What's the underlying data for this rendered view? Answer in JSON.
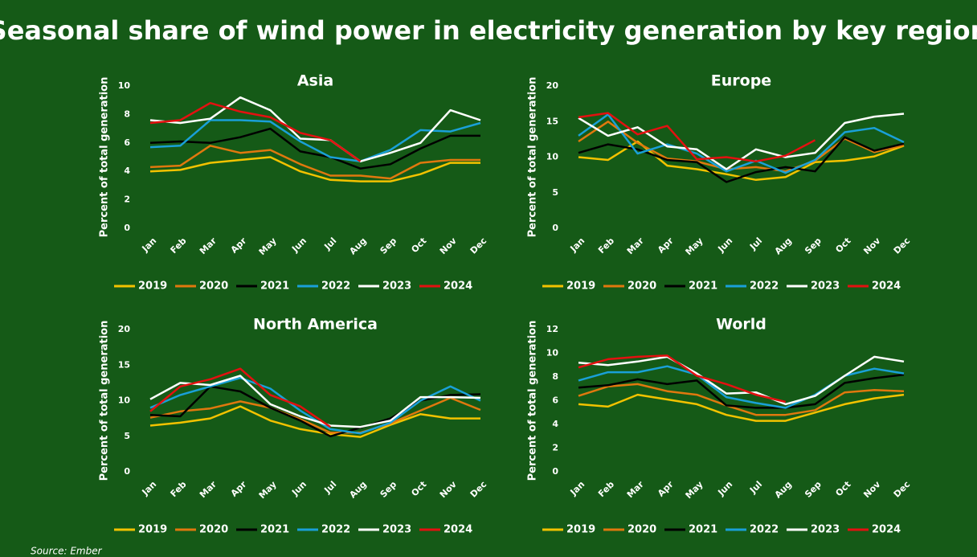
{
  "title": "Seasonal share of wind power in electricity generation by key region",
  "source": "Source: Ember",
  "chart_data": [
    {
      "type": "line",
      "title": "Asia",
      "y_label": "Percent of total generation",
      "categories": [
        "Jan",
        "Feb",
        "Mar",
        "Apr",
        "May",
        "Jun",
        "Jul",
        "Aug",
        "Sep",
        "Oct",
        "Nov",
        "Dec"
      ],
      "ylim": [
        0,
        10
      ],
      "yticks": [
        0,
        2,
        4,
        6,
        8,
        10
      ],
      "grid": false,
      "series": [
        {
          "name": "2019",
          "color": "#f2c200",
          "values": [
            4.0,
            4.1,
            4.6,
            4.8,
            5.0,
            4.0,
            3.4,
            3.3,
            3.3,
            3.8,
            4.6,
            4.6
          ]
        },
        {
          "name": "2020",
          "color": "#e0780e",
          "values": [
            4.3,
            4.4,
            5.8,
            5.3,
            5.5,
            4.5,
            3.7,
            3.7,
            3.5,
            4.6,
            4.8,
            4.8
          ]
        },
        {
          "name": "2021",
          "color": "#000000",
          "values": [
            6.0,
            6.1,
            6.0,
            6.4,
            7.0,
            5.4,
            5.0,
            4.2,
            4.5,
            5.6,
            6.5,
            6.5
          ]
        },
        {
          "name": "2022",
          "color": "#1aa0d8",
          "values": [
            5.7,
            5.8,
            7.6,
            7.6,
            7.5,
            6.1,
            5.0,
            4.7,
            5.5,
            6.9,
            6.8,
            7.4
          ]
        },
        {
          "name": "2023",
          "color": "#ffffff",
          "values": [
            7.6,
            7.4,
            7.7,
            9.2,
            8.3,
            6.3,
            6.2,
            4.7,
            5.3,
            6.0,
            8.3,
            7.6
          ]
        },
        {
          "name": "2024",
          "color": "#e41010",
          "values": [
            7.4,
            7.6,
            8.8,
            8.2,
            7.8,
            6.7,
            6.2,
            4.7,
            null,
            null,
            null,
            null
          ]
        }
      ]
    },
    {
      "type": "line",
      "title": "Europe",
      "y_label": "Percent of total generation",
      "categories": [
        "Jan",
        "Feb",
        "Mar",
        "Apr",
        "May",
        "Jun",
        "Jul",
        "Aug",
        "Sep",
        "Oct",
        "Nov",
        "Dec"
      ],
      "ylim": [
        0,
        20
      ],
      "yticks": [
        0,
        5,
        10,
        15,
        20
      ],
      "grid": false,
      "series": [
        {
          "name": "2019",
          "color": "#f2c200",
          "values": [
            10.0,
            9.6,
            12.2,
            8.8,
            8.3,
            7.6,
            6.8,
            7.2,
            9.3,
            9.5,
            10.1,
            11.6
          ]
        },
        {
          "name": "2020",
          "color": "#e0780e",
          "values": [
            12.2,
            15.0,
            12.0,
            9.8,
            9.4,
            8.3,
            8.6,
            8.0,
            9.5,
            12.6,
            10.7,
            11.7
          ]
        },
        {
          "name": "2021",
          "color": "#000000",
          "values": [
            10.6,
            11.8,
            11.1,
            9.6,
            9.3,
            6.5,
            7.9,
            8.6,
            8.0,
            12.8,
            10.9,
            11.9
          ]
        },
        {
          "name": "2022",
          "color": "#1aa0d8",
          "values": [
            13.0,
            16.0,
            10.5,
            11.8,
            10.5,
            8.0,
            9.5,
            7.8,
            9.6,
            13.5,
            14.1,
            12.1
          ]
        },
        {
          "name": "2023",
          "color": "#ffffff",
          "values": [
            15.5,
            13.0,
            14.2,
            11.5,
            11.1,
            8.3,
            11.1,
            10.0,
            10.6,
            14.8,
            15.7,
            16.1
          ]
        },
        {
          "name": "2024",
          "color": "#e41010",
          "values": [
            15.6,
            16.2,
            13.2,
            14.4,
            9.7,
            10.0,
            9.4,
            10.2,
            12.4,
            null,
            null,
            null
          ]
        }
      ]
    },
    {
      "type": "line",
      "title": "North America",
      "y_label": "Percent of total generation",
      "categories": [
        "Jan",
        "Feb",
        "Mar",
        "Apr",
        "May",
        "Jun",
        "Jul",
        "Aug",
        "Sep",
        "Oct",
        "Nov",
        "Dec"
      ],
      "ylim": [
        0,
        20
      ],
      "yticks": [
        0,
        5,
        10,
        15,
        20
      ],
      "grid": false,
      "series": [
        {
          "name": "2019",
          "color": "#f2c200",
          "values": [
            6.5,
            6.9,
            7.5,
            9.2,
            7.2,
            6.0,
            5.3,
            4.9,
            6.6,
            8.1,
            7.5,
            7.5
          ]
        },
        {
          "name": "2020",
          "color": "#e0780e",
          "values": [
            7.6,
            8.5,
            8.9,
            9.9,
            9.0,
            7.4,
            5.5,
            5.5,
            6.8,
            8.6,
            10.4,
            8.7
          ]
        },
        {
          "name": "2021",
          "color": "#000000",
          "values": [
            8.0,
            7.8,
            12.0,
            11.3,
            9.0,
            7.2,
            5.0,
            6.2,
            7.5,
            10.0,
            10.8,
            10.9
          ]
        },
        {
          "name": "2022",
          "color": "#1aa0d8",
          "values": [
            9.0,
            10.8,
            12.0,
            13.2,
            11.7,
            8.6,
            6.0,
            5.4,
            6.9,
            10.0,
            12.0,
            10.0
          ]
        },
        {
          "name": "2023",
          "color": "#ffffff",
          "values": [
            10.2,
            12.5,
            12.2,
            13.5,
            9.5,
            7.8,
            6.5,
            6.3,
            7.2,
            10.5,
            10.5,
            10.4
          ]
        },
        {
          "name": "2024",
          "color": "#e41010",
          "values": [
            8.5,
            12.0,
            13.0,
            14.5,
            10.8,
            9.2,
            6.3,
            null,
            null,
            null,
            null,
            null
          ]
        }
      ]
    },
    {
      "type": "line",
      "title": "World",
      "y_label": "Percent of total generation",
      "categories": [
        "Jan",
        "Feb",
        "Mar",
        "Apr",
        "May",
        "Jun",
        "Jul",
        "Aug",
        "Sep",
        "Oct",
        "Nov",
        "Dec"
      ],
      "ylim": [
        0,
        12
      ],
      "yticks": [
        0,
        2,
        4,
        6,
        8,
        10,
        12
      ],
      "grid": false,
      "series": [
        {
          "name": "2019",
          "color": "#f2c200",
          "values": [
            5.7,
            5.5,
            6.5,
            6.1,
            5.7,
            4.8,
            4.3,
            4.3,
            5.0,
            5.7,
            6.2,
            6.5
          ]
        },
        {
          "name": "2020",
          "color": "#e0780e",
          "values": [
            6.4,
            7.2,
            7.4,
            6.8,
            6.5,
            5.6,
            4.8,
            4.8,
            5.2,
            6.7,
            6.9,
            6.8
          ]
        },
        {
          "name": "2021",
          "color": "#000000",
          "values": [
            7.1,
            7.3,
            7.8,
            7.4,
            7.7,
            5.6,
            5.4,
            5.4,
            5.7,
            7.5,
            7.9,
            8.2
          ]
        },
        {
          "name": "2022",
          "color": "#1aa0d8",
          "values": [
            7.7,
            8.4,
            8.4,
            8.9,
            8.2,
            6.3,
            5.8,
            5.4,
            6.5,
            8.1,
            8.7,
            8.3
          ]
        },
        {
          "name": "2023",
          "color": "#ffffff",
          "values": [
            9.2,
            9.0,
            9.3,
            9.7,
            8.3,
            6.6,
            6.7,
            5.7,
            6.4,
            8.1,
            9.7,
            9.3
          ]
        },
        {
          "name": "2024",
          "color": "#e41010",
          "values": [
            8.8,
            9.5,
            9.7,
            9.8,
            8.1,
            7.4,
            6.5,
            5.9,
            null,
            null,
            null,
            null
          ]
        }
      ]
    }
  ]
}
